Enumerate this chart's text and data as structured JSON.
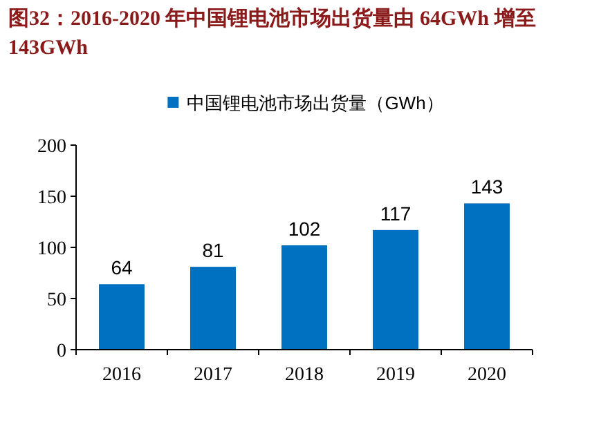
{
  "chart_data": {
    "type": "bar",
    "title": "图32：2016-2020 年中国锂电池市场出货量由 64GWh 增至 143GWh",
    "categories": [
      "2016",
      "2017",
      "2018",
      "2019",
      "2020"
    ],
    "series": [
      {
        "name": "中国锂电池市场出货量（GWh）",
        "color": "#0070c0",
        "values": [
          64,
          81,
          102,
          117,
          143
        ]
      }
    ],
    "ylim": [
      0,
      200
    ],
    "yticks": [
      0,
      50,
      100,
      150,
      200
    ],
    "legend": "top",
    "data_labels": true
  }
}
